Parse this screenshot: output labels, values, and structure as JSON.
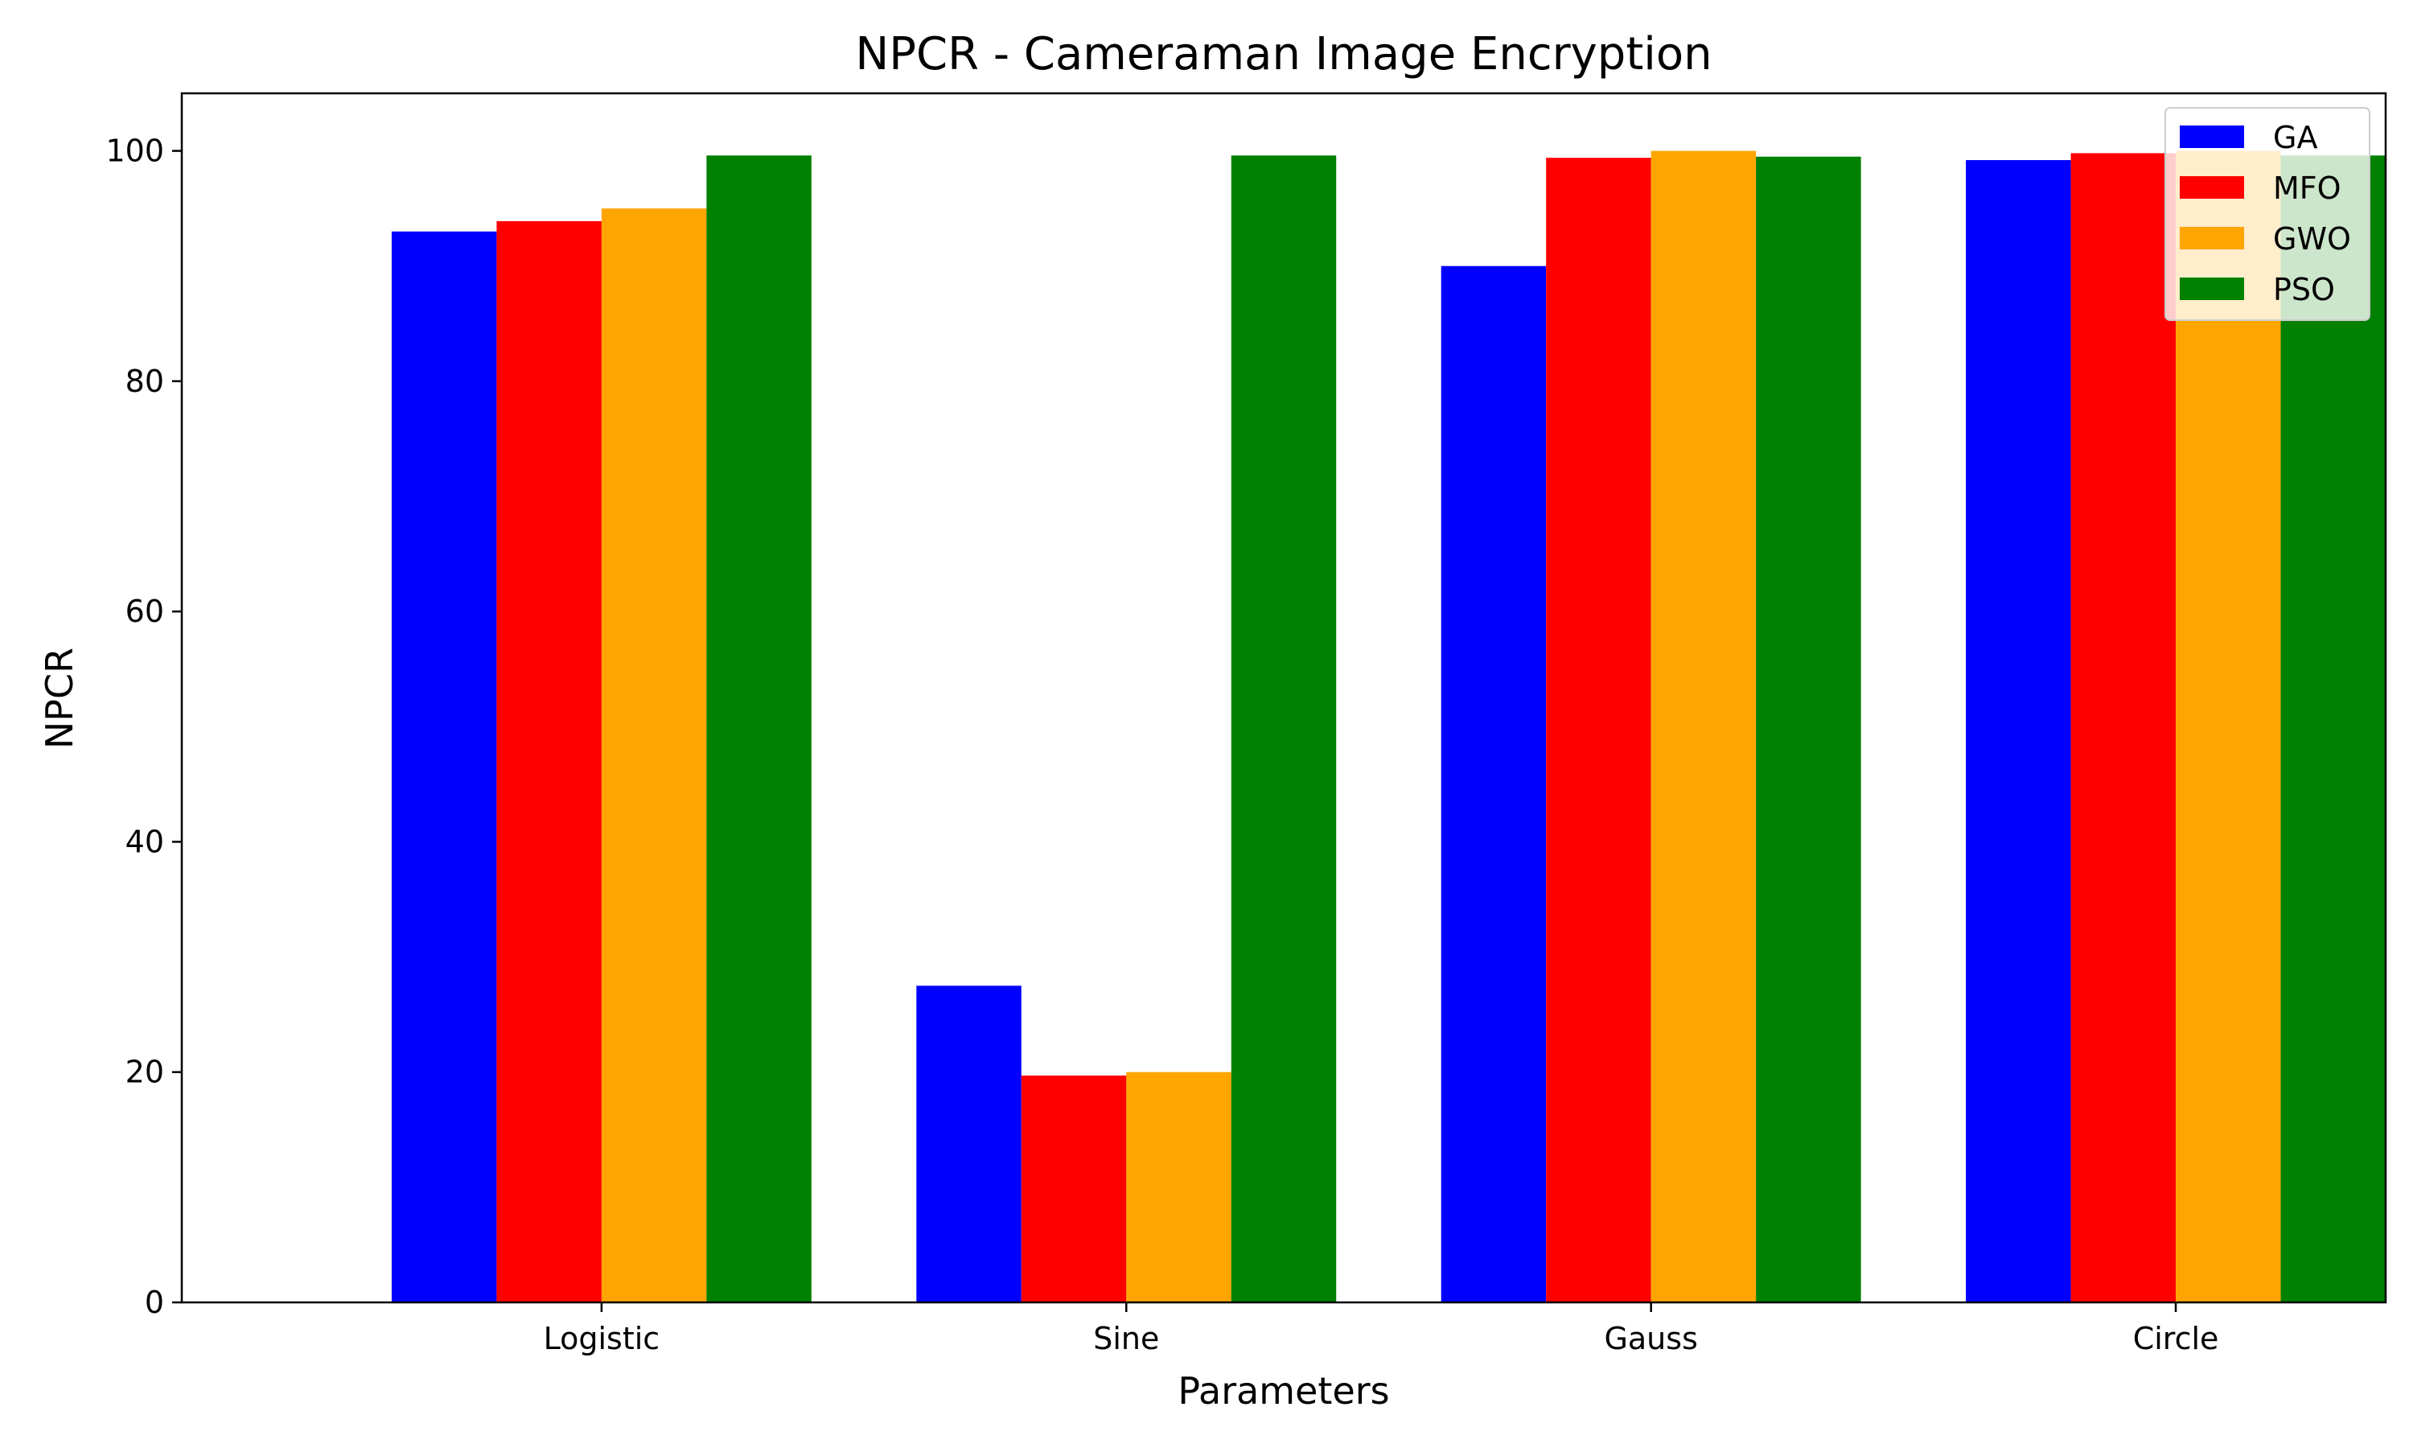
{
  "chart_data": {
    "type": "bar",
    "title": "NPCR - Cameraman Image Encryption",
    "xlabel": "Parameters",
    "ylabel": "NPCR",
    "categories": [
      "Logistic",
      "Sine",
      "Gauss",
      "Circle"
    ],
    "series": [
      {
        "name": "GA",
        "color": "#0000ff",
        "values": [
          93.0,
          27.5,
          90.0,
          99.2
        ]
      },
      {
        "name": "MFO",
        "color": "#ff0000",
        "values": [
          93.9,
          19.7,
          99.4,
          99.8
        ]
      },
      {
        "name": "GWO",
        "color": "#ffa500",
        "values": [
          95.0,
          20.0,
          100.0,
          100.0
        ]
      },
      {
        "name": "PSO",
        "color": "#008000",
        "values": [
          99.6,
          99.6,
          99.5,
          99.6
        ]
      }
    ],
    "ylim": [
      0,
      105
    ],
    "yticks": [
      0,
      20,
      40,
      60,
      80,
      100
    ],
    "grid": false,
    "legend_position": "top-right"
  }
}
